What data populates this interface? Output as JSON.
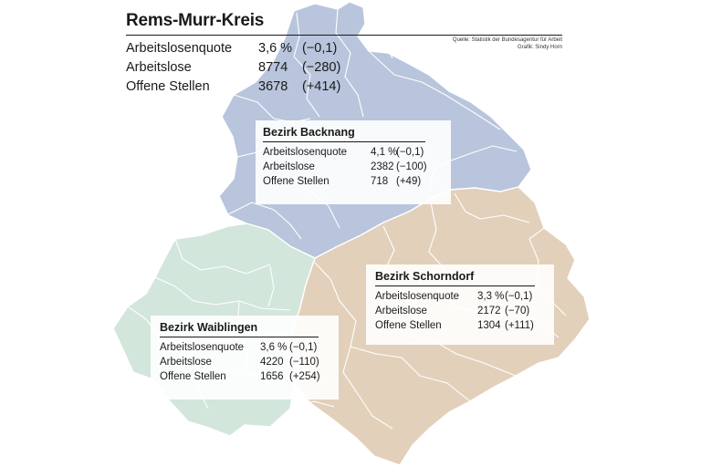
{
  "map": {
    "colors": {
      "backnang": "#b8c5dc",
      "waiblingen": "#d2e6dc",
      "schorndorf": "#e2d0ba",
      "borders": "#ffffff"
    }
  },
  "header": {
    "title": "Rems-Murr-Kreis",
    "source_line1": "Quelle: Statistik der Bundesagentur für Arbeit",
    "source_line2": "Grafik: Sindy Horn"
  },
  "kreis": {
    "rows": [
      {
        "label": "Arbeitslosenquote",
        "value": "3,6 %",
        "change": "(−0,1)"
      },
      {
        "label": "Arbeitslose",
        "value": "8774",
        "change": "(−280)"
      },
      {
        "label": "Offene Stellen",
        "value": "3678",
        "change": "(+414)"
      }
    ]
  },
  "districts": {
    "backnang": {
      "title": "Bezirk Backnang",
      "rows": [
        {
          "label": "Arbeitslosenquote",
          "value": "4,1 %",
          "change": "(−0,1)"
        },
        {
          "label": "Arbeitslose",
          "value": "2382",
          "change": "(−100)"
        },
        {
          "label": "Offene Stellen",
          "value": "718",
          "change": "(+49)"
        }
      ]
    },
    "schorndorf": {
      "title": "Bezirk Schorndorf",
      "rows": [
        {
          "label": "Arbeitslosenquote",
          "value": "3,3 %",
          "change": "(−0,1)"
        },
        {
          "label": "Arbeitslose",
          "value": "2172",
          "change": "(−70)"
        },
        {
          "label": "Offene Stellen",
          "value": "1304",
          "change": "(+111)"
        }
      ]
    },
    "waiblingen": {
      "title": "Bezirk Waiblingen",
      "rows": [
        {
          "label": "Arbeitslosenquote",
          "value": "3,6 %",
          "change": "(−0,1)"
        },
        {
          "label": "Arbeitslose",
          "value": "4220",
          "change": "(−110)"
        },
        {
          "label": "Offene Stellen",
          "value": "1656",
          "change": "(+254)"
        }
      ]
    }
  }
}
